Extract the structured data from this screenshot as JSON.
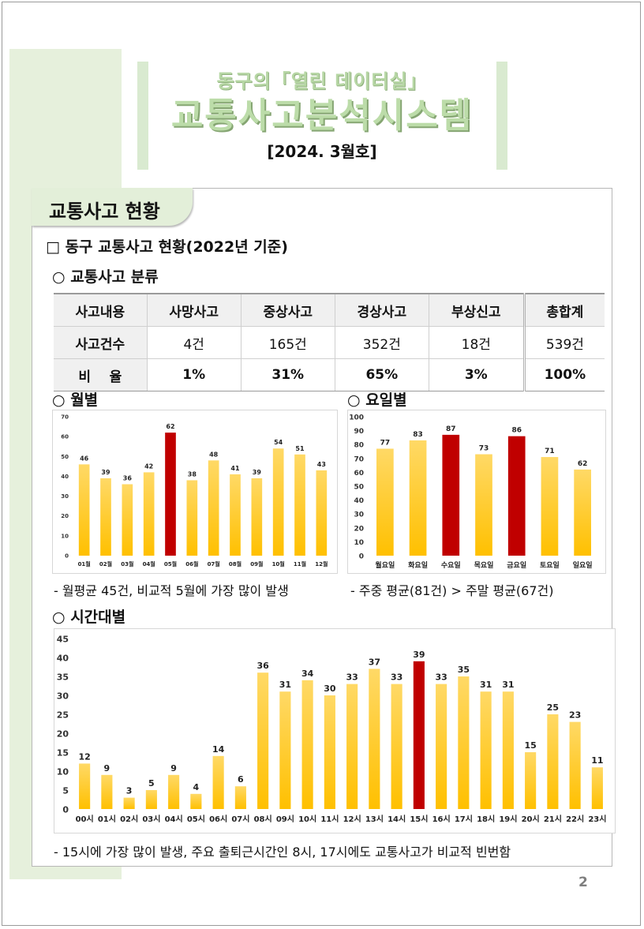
{
  "header": {
    "title_line1": "동구의「열린 데이터실」",
    "title_line2": "교통사고분석시스템",
    "issue": "[2024. 3월호]"
  },
  "section": {
    "title": "교통사고 현황",
    "subtitle": "□ 동구 교통사고 현황(2022년 기준)",
    "classification_title": "○ 교통사고 분류"
  },
  "table": {
    "headers": [
      "사고내용",
      "사망사고",
      "중상사고",
      "경상사고",
      "부상신고",
      "총합계"
    ],
    "rows": [
      {
        "label": "사고건수",
        "values": [
          "4건",
          "165건",
          "352건",
          "18건",
          "539건"
        ]
      },
      {
        "label": "비    율",
        "values": [
          "1%",
          "31%",
          "65%",
          "3%",
          "100%"
        ]
      }
    ]
  },
  "charts": {
    "monthly_title": "○ 월별",
    "weekday_title": "○ 요일별",
    "hourly_title": "○ 시간대별",
    "monthly_note": "- 월평균 45건, 비교적 5월에 가장 많이 발생",
    "weekday_note": "- 주중 평균(81건) > 주말 평균(67건)",
    "hourly_note": "- 15시에 가장 많이 발생, 주요 출퇴근시간인 8시, 17시에도 교통사고가 비교적 빈번함"
  },
  "colors": {
    "bar_normal_top": "#ffc000",
    "bar_normal_bottom": "#ffd966",
    "bar_highlight": "#c00000",
    "title_green": "#b7d7a5"
  },
  "chart_data": [
    {
      "type": "bar",
      "categories": [
        "01월",
        "02월",
        "03월",
        "04월",
        "05월",
        "06월",
        "07월",
        "08월",
        "09월",
        "10월",
        "11월",
        "12월"
      ],
      "values": [
        46,
        39,
        36,
        42,
        62,
        38,
        48,
        41,
        39,
        54,
        51,
        43
      ],
      "highlight": [
        "05월"
      ],
      "ylim": [
        0,
        70
      ],
      "yticks": [
        0,
        10,
        20,
        30,
        40,
        50,
        60,
        70
      ],
      "grid": false
    },
    {
      "type": "bar",
      "categories": [
        "월요일",
        "화요일",
        "수요일",
        "목요일",
        "금요일",
        "토요일",
        "일요일"
      ],
      "values": [
        77,
        83,
        87,
        73,
        86,
        71,
        62
      ],
      "highlight": [
        "수요일",
        "금요일"
      ],
      "ylim": [
        0,
        100
      ],
      "yticks": [
        0,
        10,
        20,
        30,
        40,
        50,
        60,
        70,
        80,
        90,
        100
      ],
      "grid": false
    },
    {
      "type": "bar",
      "categories": [
        "00시",
        "01시",
        "02시",
        "03시",
        "04시",
        "05시",
        "06시",
        "07시",
        "08시",
        "09시",
        "10시",
        "11시",
        "12시",
        "13시",
        "14시",
        "15시",
        "16시",
        "17시",
        "18시",
        "19시",
        "20시",
        "21시",
        "22시",
        "23시"
      ],
      "values": [
        12,
        9,
        3,
        5,
        9,
        4,
        14,
        6,
        36,
        31,
        34,
        30,
        33,
        37,
        33,
        39,
        33,
        35,
        31,
        31,
        15,
        25,
        23,
        11
      ],
      "highlight": [
        "15시"
      ],
      "ylim": [
        0,
        45
      ],
      "yticks": [
        0,
        5,
        10,
        15,
        20,
        25,
        30,
        35,
        40,
        45
      ],
      "grid": false
    }
  ],
  "page_number": "2"
}
